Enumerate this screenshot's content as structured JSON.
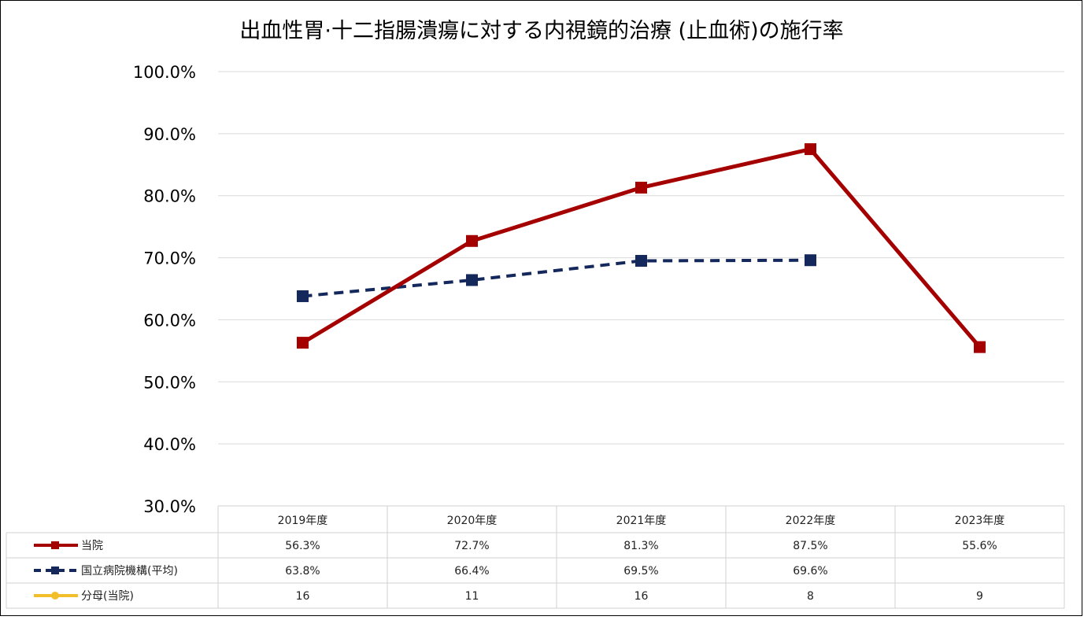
{
  "chart_data": {
    "type": "line",
    "title": "出血性胃·十二指腸潰瘍に対する内視鏡的治療 (止血術)の施行率",
    "categories": [
      "2019年度",
      "2020年度",
      "2021年度",
      "2022年度",
      "2023年度"
    ],
    "ylim": [
      30,
      100
    ],
    "yticks": [
      "30.0%",
      "40.0%",
      "50.0%",
      "60.0%",
      "70.0%",
      "80.0%",
      "90.0%",
      "100.0%"
    ],
    "series": [
      {
        "name": "当院",
        "values": [
          56.3,
          72.7,
          81.3,
          87.5,
          55.6
        ],
        "labels": [
          "56.3%",
          "72.7%",
          "81.3%",
          "87.5%",
          "55.6%"
        ],
        "color": "#A50000",
        "style": "solid",
        "marker": "square"
      },
      {
        "name": "国立病院機構(平均)",
        "values": [
          63.8,
          66.4,
          69.5,
          69.6,
          null
        ],
        "labels": [
          "63.8%",
          "66.4%",
          "69.5%",
          "69.6%",
          ""
        ],
        "color": "#14285C",
        "style": "dashed",
        "marker": "square"
      },
      {
        "name": "分母(当院)",
        "values": [
          16,
          11,
          16,
          8,
          9
        ],
        "labels": [
          "16",
          "11",
          "16",
          "8",
          "9"
        ],
        "color": "#F2BE2C",
        "style": "solid",
        "marker": "circle",
        "plotted": false
      }
    ],
    "grid": true,
    "data_table": true
  }
}
